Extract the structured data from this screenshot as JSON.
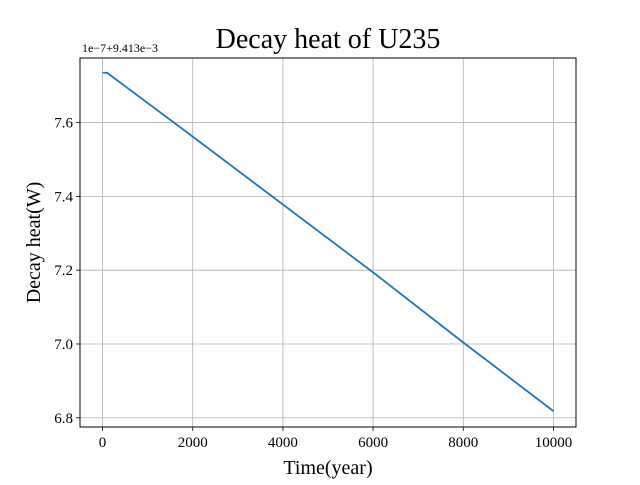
{
  "chart_data": {
    "type": "line",
    "title": "Decay heat of U235",
    "xlabel": "Time(year)",
    "ylabel": "Decay heat(W)",
    "y_offset_text": "1e−7+9.413e−3",
    "xlim": [
      -500,
      10500
    ],
    "ylim": [
      6.775,
      7.775
    ],
    "x_ticks": [
      0,
      2000,
      4000,
      6000,
      8000,
      10000
    ],
    "x_tick_labels": [
      "0",
      "2000",
      "4000",
      "6000",
      "8000",
      "10000"
    ],
    "y_ticks": [
      6.8,
      7.0,
      7.2,
      7.4,
      7.6
    ],
    "y_tick_labels": [
      "6.8",
      "7.0",
      "7.2",
      "7.4",
      "7.6"
    ],
    "grid": true,
    "series": [
      {
        "color": "#1f77b4",
        "x": [
          0,
          100,
          2000,
          4000,
          6000,
          8000,
          10000
        ],
        "y": [
          7.735,
          7.735,
          7.562,
          7.378,
          7.194,
          7.004,
          6.818
        ]
      }
    ]
  }
}
